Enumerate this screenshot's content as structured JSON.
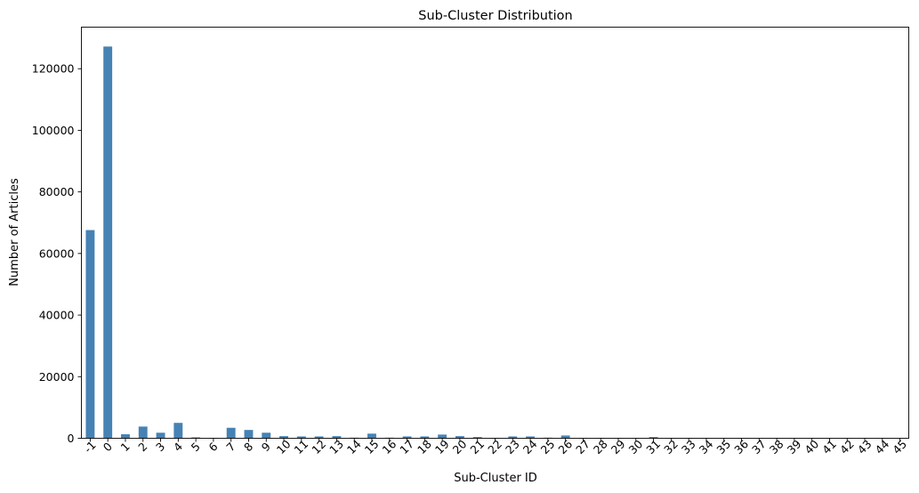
{
  "chart_data": {
    "type": "bar",
    "title": "Sub-Cluster Distribution",
    "xlabel": "Sub-Cluster ID",
    "ylabel": "Number of Articles",
    "ylim": [
      0,
      133500
    ],
    "yticks": [
      0,
      20000,
      40000,
      60000,
      80000,
      100000,
      120000
    ],
    "grid": false,
    "legend": "none",
    "bar_color": "#4682b4",
    "categories": [
      "-1",
      "0",
      "1",
      "2",
      "3",
      "4",
      "5",
      "6",
      "7",
      "8",
      "9",
      "10",
      "11",
      "12",
      "13",
      "14",
      "15",
      "16",
      "17",
      "18",
      "19",
      "20",
      "21",
      "22",
      "23",
      "24",
      "25",
      "26",
      "27",
      "28",
      "29",
      "30",
      "31",
      "32",
      "33",
      "34",
      "35",
      "36",
      "37",
      "38",
      "39",
      "40",
      "41",
      "42",
      "43",
      "44",
      "45"
    ],
    "values": [
      67600,
      127200,
      1300,
      3800,
      1800,
      5000,
      300,
      150,
      3400,
      2700,
      1800,
      700,
      600,
      600,
      700,
      200,
      1500,
      200,
      600,
      600,
      1200,
      700,
      400,
      150,
      600,
      600,
      200,
      900,
      150,
      100,
      100,
      100,
      400,
      100,
      100,
      80,
      60,
      60,
      50,
      50,
      50,
      40,
      40,
      40,
      30,
      30,
      30
    ]
  }
}
